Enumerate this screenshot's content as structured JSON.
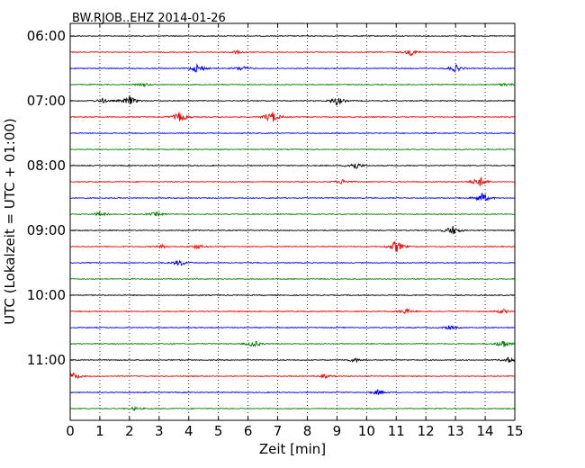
{
  "chart_data": {
    "type": "line",
    "title": "BW.RJOB..EHZ 2014-01-26",
    "xlabel": "Zeit  [min]",
    "ylabel": "UTC (Lokalzeit = UTC + 01:00)",
    "xlim": [
      0,
      15
    ],
    "x_ticks": [
      "0",
      "1",
      "2",
      "3",
      "4",
      "5",
      "6",
      "7",
      "8",
      "9",
      "10",
      "11",
      "12",
      "13",
      "14",
      "15"
    ],
    "y_tick_labels": [
      "06:00",
      "07:00",
      "08:00",
      "09:00",
      "10:00",
      "11:00"
    ],
    "grid": "vertical dotted",
    "trace_colors": [
      "#000000",
      "#ff0000",
      "#0000ff",
      "#008000"
    ],
    "trace_start_times": [
      "06:00",
      "06:15",
      "06:30",
      "06:45",
      "07:00",
      "07:15",
      "07:30",
      "07:45",
      "08:00",
      "08:15",
      "08:30",
      "08:45",
      "09:00",
      "09:15",
      "09:30",
      "09:45",
      "10:00",
      "10:15",
      "10:30",
      "10:45",
      "11:00",
      "11:15",
      "11:30",
      "11:45"
    ],
    "events": [
      {
        "trace": 1,
        "x": 5.6,
        "amp": 0.3
      },
      {
        "trace": 1,
        "x": 11.5,
        "amp": 0.6
      },
      {
        "trace": 2,
        "x": 4.3,
        "amp": 0.9
      },
      {
        "trace": 2,
        "x": 5.8,
        "amp": 0.5
      },
      {
        "trace": 2,
        "x": 13.0,
        "amp": 0.7
      },
      {
        "trace": 3,
        "x": 2.5,
        "amp": 0.3
      },
      {
        "trace": 3,
        "x": 14.7,
        "amp": 0.3
      },
      {
        "trace": 4,
        "x": 2.0,
        "amp": 0.9
      },
      {
        "trace": 4,
        "x": 9.0,
        "amp": 0.8
      },
      {
        "trace": 4,
        "x": 1.1,
        "amp": 0.4
      },
      {
        "trace": 5,
        "x": 3.7,
        "amp": 1.0
      },
      {
        "trace": 5,
        "x": 6.8,
        "amp": 1.2
      },
      {
        "trace": 8,
        "x": 9.6,
        "amp": 0.8
      },
      {
        "trace": 9,
        "x": 9.2,
        "amp": 0.5
      },
      {
        "trace": 9,
        "x": 13.8,
        "amp": 1.0
      },
      {
        "trace": 10,
        "x": 13.9,
        "amp": 1.0
      },
      {
        "trace": 11,
        "x": 1.0,
        "amp": 0.4
      },
      {
        "trace": 11,
        "x": 2.9,
        "amp": 0.4
      },
      {
        "trace": 12,
        "x": 12.9,
        "amp": 0.9
      },
      {
        "trace": 13,
        "x": 11.0,
        "amp": 1.2
      },
      {
        "trace": 13,
        "x": 4.3,
        "amp": 0.4
      },
      {
        "trace": 13,
        "x": 3.1,
        "amp": 0.3
      },
      {
        "trace": 14,
        "x": 3.7,
        "amp": 0.6
      },
      {
        "trace": 17,
        "x": 11.3,
        "amp": 0.5
      },
      {
        "trace": 17,
        "x": 14.6,
        "amp": 0.4
      },
      {
        "trace": 18,
        "x": 12.8,
        "amp": 0.4
      },
      {
        "trace": 19,
        "x": 6.2,
        "amp": 0.7
      },
      {
        "trace": 19,
        "x": 14.6,
        "amp": 0.8
      },
      {
        "trace": 20,
        "x": 9.6,
        "amp": 0.4
      },
      {
        "trace": 20,
        "x": 14.8,
        "amp": 0.5
      },
      {
        "trace": 21,
        "x": 0.1,
        "amp": 0.7
      },
      {
        "trace": 21,
        "x": 8.6,
        "amp": 0.3
      },
      {
        "trace": 22,
        "x": 10.4,
        "amp": 0.5
      },
      {
        "trace": 23,
        "x": 2.2,
        "amp": 0.3
      }
    ]
  }
}
